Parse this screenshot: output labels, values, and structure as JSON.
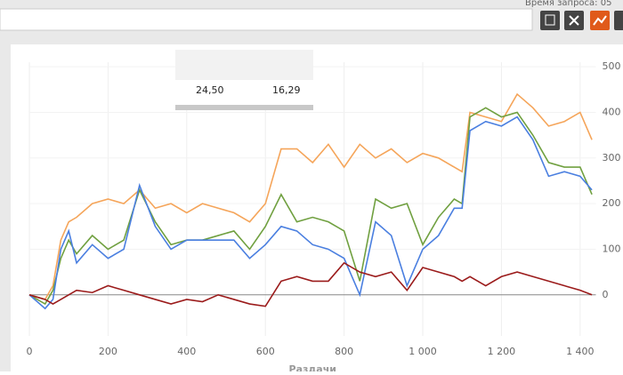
{
  "header": {
    "status": "Время запроса: 05"
  },
  "table": {
    "rows": [
      [
        "24,50",
        "16,29"
      ]
    ]
  },
  "chart_data": {
    "type": "line",
    "x_label": "Раздачи",
    "x": [
      0,
      40,
      60,
      80,
      100,
      120,
      160,
      200,
      240,
      280,
      320,
      360,
      400,
      440,
      480,
      520,
      560,
      600,
      640,
      680,
      720,
      760,
      800,
      840,
      880,
      920,
      960,
      1000,
      1040,
      1080,
      1100,
      1120,
      1160,
      1200,
      1240,
      1280,
      1320,
      1360,
      1400,
      1430
    ],
    "series": [
      {
        "color": "#f5a55a",
        "values": [
          0,
          -10,
          20,
          120,
          160,
          170,
          200,
          210,
          200,
          230,
          190,
          200,
          180,
          200,
          190,
          180,
          160,
          200,
          320,
          320,
          290,
          330,
          280,
          330,
          300,
          320,
          290,
          310,
          300,
          280,
          270,
          400,
          390,
          380,
          440,
          410,
          370,
          380,
          400,
          340
        ]
      },
      {
        "color": "#70a040",
        "values": [
          0,
          -20,
          10,
          80,
          120,
          90,
          130,
          100,
          120,
          230,
          160,
          110,
          120,
          120,
          130,
          140,
          100,
          150,
          220,
          160,
          170,
          160,
          140,
          30,
          210,
          190,
          200,
          110,
          170,
          210,
          200,
          390,
          410,
          390,
          400,
          350,
          290,
          280,
          280,
          220
        ]
      },
      {
        "color": "#4a7fe0",
        "values": [
          0,
          -30,
          -10,
          100,
          140,
          70,
          110,
          80,
          100,
          240,
          150,
          100,
          120,
          120,
          120,
          120,
          80,
          110,
          150,
          140,
          110,
          100,
          80,
          0,
          160,
          130,
          20,
          100,
          130,
          190,
          190,
          360,
          380,
          370,
          390,
          340,
          260,
          270,
          260,
          230
        ]
      },
      {
        "color": "#9b1b1b",
        "values": [
          0,
          -10,
          -20,
          -10,
          0,
          10,
          5,
          20,
          10,
          0,
          -10,
          -20,
          -10,
          -15,
          0,
          -10,
          -20,
          -25,
          30,
          40,
          30,
          30,
          70,
          50,
          40,
          50,
          10,
          60,
          50,
          40,
          30,
          40,
          20,
          40,
          50,
          40,
          30,
          20,
          10,
          0
        ]
      }
    ],
    "xlim": [
      0,
      1440
    ],
    "xticks": [
      0,
      200,
      400,
      600,
      800,
      {
        "value": 1000,
        "label": "1 000"
      },
      {
        "value": 1200,
        "label": "1 200"
      },
      {
        "value": 1400,
        "label": "1 400"
      }
    ],
    "ylim": [
      -90,
      510
    ],
    "yticks": [
      0,
      100,
      200,
      300,
      400,
      500
    ],
    "grid": true
  }
}
